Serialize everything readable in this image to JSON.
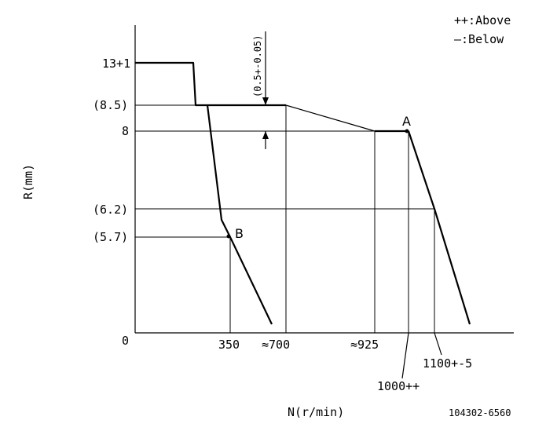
{
  "legend": {
    "above": "++:Above",
    "below": "—:Below"
  },
  "axes": {
    "y_label": "R(mm)",
    "x_label": "N(r/min)"
  },
  "y_ticks": {
    "top": "13+1",
    "r85": "(8.5)",
    "r8": "8",
    "r62": "(6.2)",
    "r57": "(5.7)",
    "zero": "0"
  },
  "x_ticks": {
    "n350": "350",
    "n700": "≈700",
    "n925": "≈925",
    "n1000": "1000++",
    "n1100": "1100+-5"
  },
  "annotations": {
    "gap": "(0.5+-0.05)",
    "point_a": "A",
    "point_b": "B"
  },
  "part_number": "104302-6560"
}
